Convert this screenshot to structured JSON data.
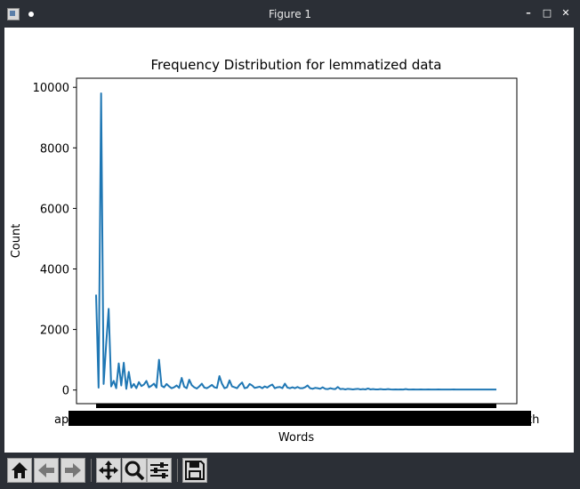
{
  "window": {
    "title": "Figure 1",
    "buttons": {
      "minimize": "–",
      "maximize": "□",
      "close": "✕"
    }
  },
  "toolbar": {
    "icons": [
      "home-icon",
      "back-arrow-icon",
      "forward-arrow-icon",
      "pan-icon",
      "zoom-icon",
      "configure-subplots-icon",
      "save-icon"
    ]
  },
  "chart_data": {
    "type": "line",
    "title": "Frequency Distribution for lemmatized data",
    "xlabel": "Words",
    "ylabel": "Count",
    "ylim": [
      -450,
      10300
    ],
    "yticks": [
      0,
      2000,
      4000,
      6000,
      8000,
      10000
    ],
    "ytick_labels": [
      "0",
      "2000",
      "4000",
      "6000",
      "8000",
      "10000"
    ],
    "x_tick_labels_left": "ap",
    "x_tick_labels_right": "th",
    "x_tick_labels_note": "thousands of overlapping word tick labels",
    "grid": false,
    "legend": "none",
    "line_color": "#1f77b4",
    "series": [
      {
        "values": [
          3150,
          80,
          9800,
          200,
          1500,
          2680,
          120,
          300,
          60,
          880,
          150,
          900,
          40,
          600,
          80,
          200,
          60,
          260,
          130,
          180,
          300,
          90,
          140,
          210,
          80,
          1000,
          140,
          90,
          200,
          120,
          60,
          90,
          150,
          70,
          400,
          110,
          60,
          340,
          160,
          90,
          50,
          120,
          210,
          80,
          60,
          110,
          170,
          90,
          70,
          460,
          210,
          60,
          90,
          320,
          120,
          90,
          60,
          170,
          250,
          60,
          80,
          200,
          150,
          70,
          90,
          110,
          60,
          120,
          80,
          140,
          180,
          60,
          90,
          100,
          60,
          210,
          80,
          60,
          90,
          60,
          100,
          60,
          60,
          90,
          150,
          60,
          40,
          70,
          60,
          40,
          90,
          40,
          30,
          60,
          40,
          30,
          100,
          30,
          40,
          20,
          40,
          30,
          20,
          30,
          40,
          20,
          30,
          20,
          50,
          20,
          30,
          20,
          20,
          30,
          20,
          20,
          30,
          20,
          15,
          20,
          15,
          20,
          15,
          30,
          15,
          15,
          20,
          15,
          15,
          20,
          15,
          15,
          20,
          15,
          15,
          15,
          20,
          15,
          15,
          15,
          15,
          15,
          20,
          15,
          15,
          15,
          15,
          15,
          15,
          15,
          15,
          15,
          15,
          15,
          15,
          15,
          15,
          15,
          15,
          15
        ]
      }
    ]
  }
}
